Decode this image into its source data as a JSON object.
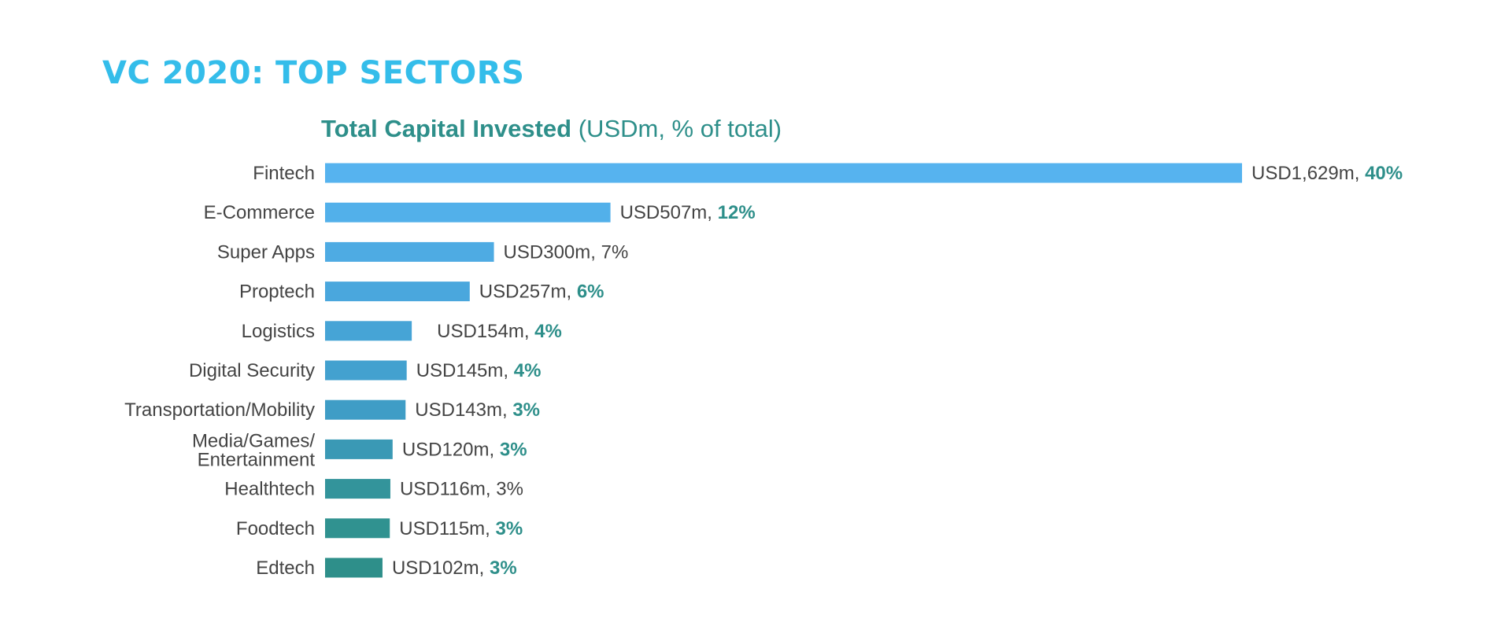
{
  "title": "VC 2020: TOP SECTORS",
  "chart_data": {
    "type": "bar",
    "orientation": "horizontal",
    "title": "Total Capital Invested",
    "subtitle": "(USDm, % of total)",
    "categories": [
      "Fintech",
      "E-Commerce",
      "Super Apps",
      "Proptech",
      "Logistics",
      "Digital Security",
      "Transportation/Mobility",
      "Media/Games/ Entertainment",
      "Healthtech",
      "Foodtech",
      "Edtech"
    ],
    "values": [
      1629,
      507,
      300,
      257,
      154,
      145,
      143,
      120,
      116,
      115,
      102
    ],
    "value_labels": [
      "USD1,629m,",
      "USD507m,",
      "USD300m,",
      "USD257m,",
      "USD154m,",
      "USD145m,",
      "USD143m,",
      "USD120m,",
      "USD116m,",
      "USD115m,",
      "USD102m,"
    ],
    "percent_labels": [
      "40%",
      "12%",
      "7%",
      "6%",
      "4%",
      "4%",
      "3%",
      "3%",
      "3%",
      "3%",
      "3%"
    ],
    "percent_bold": [
      true,
      true,
      false,
      true,
      true,
      true,
      true,
      true,
      false,
      true,
      true
    ],
    "bar_colors": [
      "#56b3ef",
      "#52b0ea",
      "#4eabe3",
      "#4aa7dd",
      "#46a4d6",
      "#43a1cf",
      "#3f9dc6",
      "#3a99b5",
      "#33949b",
      "#309290",
      "#2e8f8a"
    ],
    "label_color": "#444444",
    "accent_color": "#2e8f8a",
    "title_color": "#34bdea",
    "grid": false,
    "legend": "none"
  }
}
